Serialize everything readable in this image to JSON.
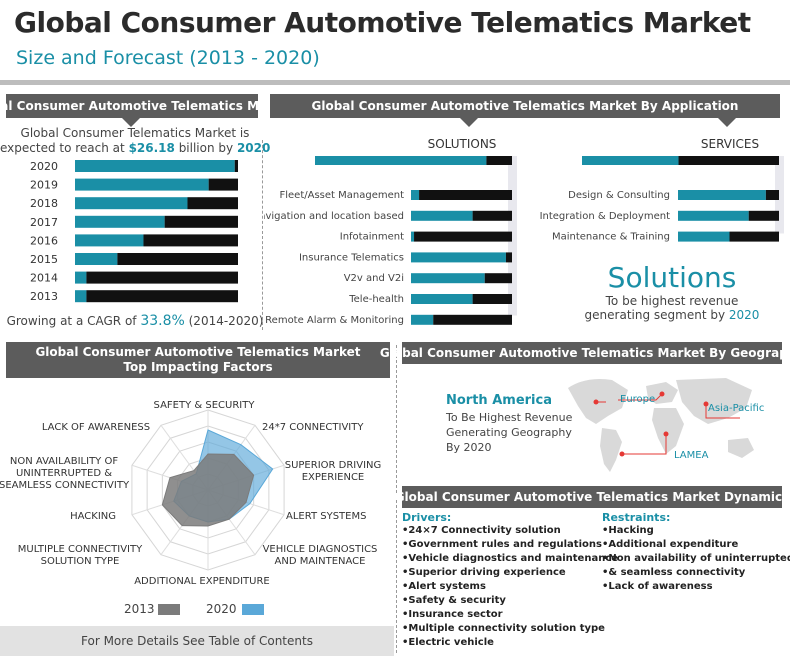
{
  "title": "Global Consumer Automotive Telematics Market",
  "subtitle": "Size and Forecast (2013 - 2020)",
  "colors": {
    "teal": "#1a8fa6",
    "black": "#111111",
    "header": "#5c5c5c",
    "grey": "#7b7b7b",
    "light_blue": "#5aa8d8"
  },
  "market": {
    "header": "Global Consumer Automotive Telematics Market",
    "intro_line1": "Global Consumer Telematics Market is",
    "intro_pre": "expected to reach at ",
    "intro_value": "$26.18",
    "intro_mid": " billion by ",
    "intro_year": "2020",
    "cagr_pre": "Growing at a CAGR of ",
    "cagr_value": "33.8%",
    "cagr_post": " (2014-2020)"
  },
  "application": {
    "header": "Global Consumer Automotive Telematics Market By Application",
    "solutions_label": "SOLUTIONS",
    "services_label": "SERVICES",
    "callout_title": "Solutions",
    "callout_line1": "To be highest revenue",
    "callout_pre": "generating segment by ",
    "callout_year": "2020"
  },
  "factors": {
    "header_line1": "Global Consumer Automotive Telematics Market",
    "header_line2": "Top Impacting Factors",
    "legend_2013": "2013",
    "legend_2020": "2020"
  },
  "geography": {
    "header": "Global Consumer Automotive Telematics Market By Geography",
    "lead_region": "North America",
    "lead_line1": "To Be Highest Revenue",
    "lead_line2": "Generating Geography",
    "lead_line3": "By 2020",
    "map_labels": [
      "Europe",
      "Asia-Pacific",
      "LAMEA"
    ]
  },
  "dynamics": {
    "header": "Global Consumer Automotive Telematics Market Dynamics",
    "drivers_title": "Drivers:",
    "drivers": [
      "24×7 Connectivity solution",
      "Government rules and regulations",
      "Vehicle diagnostics and maintenance",
      "Superior driving experience",
      "Alert systems",
      "Safety & security",
      "Insurance sector",
      "Multiple connectivity solution type",
      "Electric vehicle"
    ],
    "restraints_title": "Restraints:",
    "restraints": [
      "Hacking",
      "Additional expenditure",
      "Non availability of uninterrupted",
      "& seamless connectivity",
      "Lack of awareness"
    ]
  },
  "footer": "For More Details See Table of Contents",
  "chart_data": [
    {
      "type": "bar",
      "orientation": "horizontal",
      "stacked": true,
      "categories": [
        "2020",
        "2019",
        "2018",
        "2017",
        "2016",
        "2015",
        "2014",
        "2013"
      ],
      "series": [
        {
          "values": [
            0.98,
            0.82,
            0.69,
            0.55,
            0.42,
            0.26,
            0.07,
            0.07
          ]
        },
        {
          "values": [
            0.02,
            0.18,
            0.31,
            0.45,
            0.58,
            0.74,
            0.93,
            0.93
          ]
        }
      ]
    },
    {
      "type": "bar",
      "orientation": "horizontal",
      "stacked": true,
      "title": "SOLUTIONS",
      "categories": [
        "Fleet/Asset Management",
        "Navigation and location based",
        "Infotainment",
        "Insurance Telematics",
        "V2v and V2i",
        "Tele-health",
        "Remote Alarm & Monitoring"
      ],
      "total": 0.87,
      "series": [
        {
          "values": [
            0.08,
            0.61,
            0.03,
            0.94,
            0.73,
            0.61,
            0.22
          ]
        },
        {
          "values": [
            0.92,
            0.39,
            0.97,
            0.06,
            0.27,
            0.39,
            0.78
          ]
        }
      ]
    },
    {
      "type": "bar",
      "orientation": "horizontal",
      "stacked": true,
      "title": "SERVICES",
      "categories": [
        "Design & Consulting",
        "Integration & Deployment",
        "Maintenance & Training"
      ],
      "total": 0.49,
      "series": [
        {
          "values": [
            0.87,
            0.7,
            0.51
          ]
        },
        {
          "values": [
            0.13,
            0.3,
            0.49
          ]
        }
      ]
    },
    {
      "type": "radar",
      "axes": [
        "SAFETY & SECURITY",
        "24*7 CONNECTIVITY",
        "SUPERIOR DRIVING EXPERIENCE",
        "ALERT SYSTEMS",
        "VEHICLE DIAGNOSTICS AND MAINTENACE",
        "ADDITIONAL EXPENDITURE",
        "MULTIPLE CONNECTIVITY SOLUTION TYPE",
        "HACKING",
        "NON AVAILABILITY OF UNINTERRUPTED & SEAMLESS CONNECTIVITY",
        "LACK OF AWARENESS"
      ],
      "series": [
        {
          "name": "2013",
          "values": [
            0.45,
            0.55,
            0.6,
            0.5,
            0.45,
            0.45,
            0.55,
            0.6,
            0.5,
            0.3
          ]
        },
        {
          "name": "2020",
          "values": [
            0.75,
            0.7,
            0.85,
            0.55,
            0.45,
            0.4,
            0.4,
            0.45,
            0.35,
            0.25
          ]
        }
      ]
    }
  ]
}
